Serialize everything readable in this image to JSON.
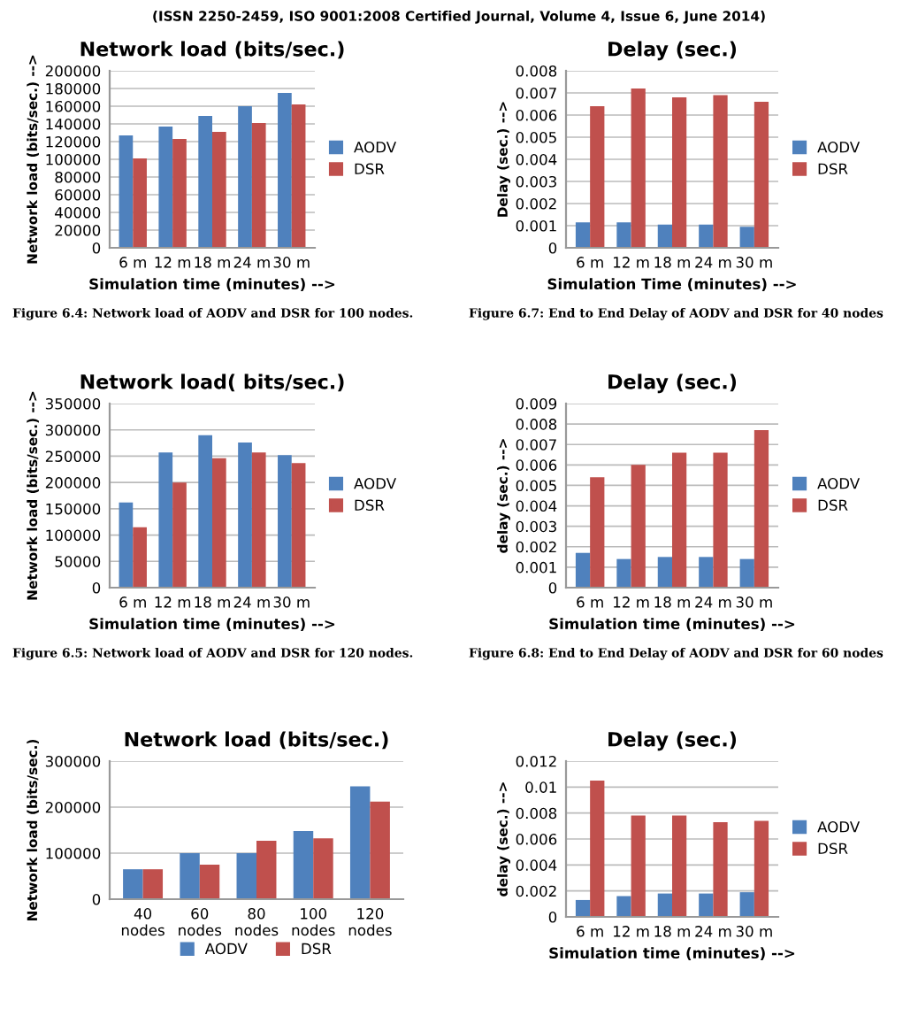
{
  "chart_data": [
    {
      "type": "bar",
      "title": "Network load (bits/sec.)",
      "xlabel": "Simulation time (minutes) -->",
      "ylabel": "Network load (bits/sec.) -->",
      "categories": [
        "6 m",
        "12 m",
        "18 m",
        "24 m",
        "30 m"
      ],
      "series": [
        {
          "name": "AODV",
          "color": "#4f81bd",
          "values": [
            127000,
            137000,
            149000,
            160000,
            175000
          ]
        },
        {
          "name": "DSR",
          "color": "#c0504d",
          "values": [
            101000,
            123000,
            131000,
            141000,
            162000
          ]
        }
      ],
      "ylim": [
        0,
        200000
      ],
      "yticks": [
        0,
        20000,
        40000,
        60000,
        80000,
        100000,
        120000,
        140000,
        160000,
        180000,
        200000
      ],
      "grid": "y",
      "legend": "right",
      "annotations": [
        "(ISSN 2250-2459, ISO 9001:2008 Certified Journal, Volume 4, Issue 6, June 2014)",
        "Figure 6.4: Network load of AODV and DSR for 100 nodes."
      ]
    },
    {
      "type": "bar",
      "title": "Delay (sec.)",
      "xlabel": "Simulation Time (minutes) -->",
      "ylabel": "Delay (sec.) -->",
      "categories": [
        "6 m",
        "12 m",
        "18 m",
        "24 m",
        "30 m"
      ],
      "series": [
        {
          "name": "AODV",
          "color": "#4f81bd",
          "values": [
            0.00115,
            0.00115,
            0.00105,
            0.00105,
            0.00095
          ]
        },
        {
          "name": "DSR",
          "color": "#c0504d",
          "values": [
            0.0064,
            0.0072,
            0.0068,
            0.0069,
            0.0066
          ]
        }
      ],
      "ylim": [
        0,
        0.008
      ],
      "yticks": [
        0,
        0.001,
        0.002,
        0.003,
        0.004,
        0.005,
        0.006,
        0.007,
        0.008
      ],
      "grid": "y",
      "legend": "right",
      "annotations": [
        "Figure 6.7: End to End Delay of AODV and DSR for 40 nodes"
      ]
    },
    {
      "type": "bar",
      "title": "Network load( bits/sec.)",
      "xlabel": "Simulation time (minutes) -->",
      "ylabel": "Network load (bits/sec.) -->",
      "categories": [
        "6 m",
        "12 m",
        "18 m",
        "24 m",
        "30 m"
      ],
      "series": [
        {
          "name": "AODV",
          "color": "#4f81bd",
          "values": [
            162000,
            257000,
            290000,
            276000,
            252000
          ]
        },
        {
          "name": "DSR",
          "color": "#c0504d",
          "values": [
            115000,
            200000,
            246000,
            257000,
            237000
          ]
        }
      ],
      "ylim": [
        0,
        350000
      ],
      "yticks": [
        0,
        50000,
        100000,
        150000,
        200000,
        250000,
        300000,
        350000
      ],
      "grid": "y",
      "legend": "right",
      "annotations": [
        "Figure 6.5: Network load of AODV and DSR for 120 nodes."
      ]
    },
    {
      "type": "bar",
      "title": "Delay (sec.)",
      "xlabel": "Simulation time (minutes) -->",
      "ylabel": "delay (sec.) -->",
      "categories": [
        "6 m",
        "12 m",
        "18 m",
        "24 m",
        "30 m"
      ],
      "series": [
        {
          "name": "AODV",
          "color": "#4f81bd",
          "values": [
            0.0017,
            0.0014,
            0.0015,
            0.0015,
            0.0014
          ]
        },
        {
          "name": "DSR",
          "color": "#c0504d",
          "values": [
            0.0054,
            0.006,
            0.0066,
            0.0066,
            0.0077
          ]
        }
      ],
      "ylim": [
        0,
        0.009
      ],
      "yticks": [
        0,
        0.001,
        0.002,
        0.003,
        0.004,
        0.005,
        0.006,
        0.007,
        0.008,
        0.009
      ],
      "grid": "y",
      "legend": "right",
      "annotations": [
        "Figure 6.8: End to End Delay of AODV and DSR for 60 nodes"
      ]
    },
    {
      "type": "bar",
      "title": "Network load (bits/sec.)",
      "ylabel": "Network load (bits/sec.)",
      "categories": [
        "40 nodes",
        "60 nodes",
        "80 nodes",
        "100 nodes",
        "120 nodes"
      ],
      "series": [
        {
          "name": "AODV",
          "color": "#4f81bd",
          "values": [
            65000,
            100000,
            100000,
            148000,
            245000
          ]
        },
        {
          "name": "DSR",
          "color": "#c0504d",
          "values": [
            65000,
            75000,
            127000,
            132000,
            212000
          ]
        }
      ],
      "ylim": [
        0,
        300000
      ],
      "yticks": [
        0,
        100000,
        200000,
        300000
      ],
      "grid": "y",
      "legend": "bottom"
    },
    {
      "type": "bar",
      "title": "Delay (sec.)",
      "xlabel": "Simulation time (minutes) -->",
      "ylabel": "delay (sec.) -->",
      "categories": [
        "6 m",
        "12 m",
        "18 m",
        "24 m",
        "30 m"
      ],
      "series": [
        {
          "name": "AODV",
          "color": "#4f81bd",
          "values": [
            0.0013,
            0.0016,
            0.0018,
            0.0018,
            0.0019
          ]
        },
        {
          "name": "DSR",
          "color": "#c0504d",
          "values": [
            0.0105,
            0.0078,
            0.0078,
            0.0073,
            0.0074
          ]
        }
      ],
      "ylim": [
        0,
        0.012
      ],
      "yticks": [
        0,
        0.002,
        0.004,
        0.006,
        0.008,
        0.01,
        0.012
      ],
      "grid": "y",
      "legend": "right"
    }
  ]
}
